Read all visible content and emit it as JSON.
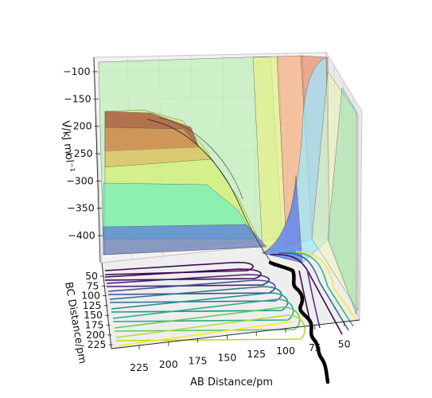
{
  "chart_data": {
    "type": "surface-3d",
    "zlabel": "V/kJ mol⁻¹",
    "xlabel": "AB Distance/pm",
    "ylabel": "BC Distance/pm",
    "z_ticks": [
      "−100",
      "−150",
      "−200",
      "−250",
      "−300",
      "−350",
      "−400"
    ],
    "x_ticks": [
      "225",
      "200",
      "175",
      "150",
      "125",
      "100",
      "75",
      "50"
    ],
    "y_ticks": [
      "50",
      "75",
      "100",
      "125",
      "150",
      "175",
      "200",
      "225"
    ],
    "zlim": [
      -440,
      -80
    ],
    "grid": true,
    "colormap": "viridis",
    "trajectory_color": "#000000"
  }
}
